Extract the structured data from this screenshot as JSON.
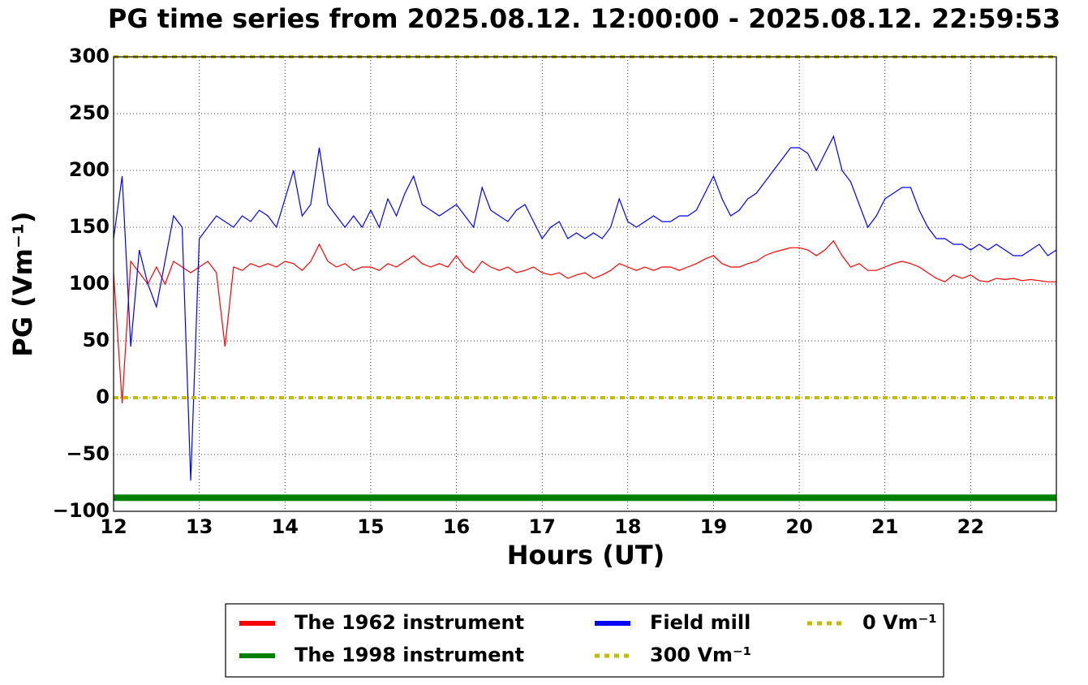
{
  "chart_data": {
    "type": "line",
    "title": "PG time series from 2025.08.12. 12:00:00 - 2025.08.12. 22:59:53",
    "xlabel": "Hours (UT)",
    "ylabel": "PG (Vm⁻¹)",
    "x": [
      12,
      12.1,
      12.2,
      12.3,
      12.4,
      12.5,
      12.6,
      12.7,
      12.8,
      12.9,
      13,
      13.1,
      13.2,
      13.3,
      13.4,
      13.5,
      13.6,
      13.7,
      13.8,
      13.9,
      14,
      14.1,
      14.2,
      14.3,
      14.4,
      14.5,
      14.6,
      14.7,
      14.8,
      14.9,
      15,
      15.1,
      15.2,
      15.3,
      15.4,
      15.5,
      15.6,
      15.7,
      15.8,
      15.9,
      16,
      16.1,
      16.2,
      16.3,
      16.4,
      16.5,
      16.6,
      16.7,
      16.8,
      16.9,
      17,
      17.1,
      17.2,
      17.3,
      17.4,
      17.5,
      17.6,
      17.7,
      17.8,
      17.9,
      18,
      18.1,
      18.2,
      18.3,
      18.4,
      18.5,
      18.6,
      18.7,
      18.8,
      18.9,
      19,
      19.1,
      19.2,
      19.3,
      19.4,
      19.5,
      19.6,
      19.7,
      19.8,
      19.9,
      20,
      20.1,
      20.2,
      20.3,
      20.4,
      20.5,
      20.6,
      20.7,
      20.8,
      20.9,
      21,
      21.1,
      21.2,
      21.3,
      21.4,
      21.5,
      21.6,
      21.7,
      21.8,
      21.9,
      22,
      22.1,
      22.2,
      22.3,
      22.4,
      22.5,
      22.6,
      22.7,
      22.8,
      22.9,
      23
    ],
    "series": [
      {
        "name": "The 1962 instrument",
        "color": "#ff0000",
        "width": 1.2,
        "values": [
          110,
          -5,
          120,
          110,
          100,
          115,
          100,
          120,
          115,
          110,
          115,
          120,
          110,
          45,
          115,
          112,
          118,
          115,
          118,
          115,
          120,
          118,
          112,
          120,
          135,
          120,
          115,
          118,
          112,
          115,
          115,
          112,
          118,
          115,
          120,
          125,
          118,
          115,
          118,
          115,
          125,
          115,
          110,
          120,
          115,
          112,
          115,
          110,
          112,
          115,
          110,
          108,
          110,
          105,
          108,
          110,
          105,
          108,
          112,
          118,
          115,
          112,
          115,
          112,
          115,
          115,
          112,
          115,
          118,
          122,
          125,
          118,
          115,
          115,
          118,
          120,
          125,
          128,
          130,
          132,
          132,
          130,
          125,
          130,
          138,
          125,
          115,
          118,
          112,
          112,
          115,
          118,
          120,
          118,
          115,
          110,
          105,
          102,
          108,
          105,
          108,
          103,
          102,
          105,
          104,
          105,
          103,
          104,
          103,
          102,
          102
        ]
      },
      {
        "name": "The 1998 instrument",
        "color": "#008000",
        "width": 8,
        "values": [
          -88,
          -88,
          -88,
          -88,
          -88,
          -88,
          -88,
          -88,
          -88,
          -88,
          -88,
          -88,
          -88,
          -88,
          -88,
          -88,
          -88,
          -88,
          -88,
          -88,
          -88,
          -88,
          -88,
          -88,
          -88,
          -88,
          -88,
          -88,
          -88,
          -88,
          -88,
          -88,
          -88,
          -88,
          -88,
          -88,
          -88,
          -88,
          -88,
          -88,
          -88,
          -88,
          -88,
          -88,
          -88,
          -88,
          -88,
          -88,
          -88,
          -88,
          -88,
          -88,
          -88,
          -88,
          -88,
          -88,
          -88,
          -88,
          -88,
          -88,
          -88,
          -88,
          -88,
          -88,
          -88,
          -88,
          -88,
          -88,
          -88,
          -88,
          -88,
          -88,
          -88,
          -88,
          -88,
          -88,
          -88,
          -88,
          -88,
          -88,
          -88,
          -88,
          -88,
          -88,
          -88,
          -88,
          -88,
          -88,
          -88,
          -88,
          -88,
          -88,
          -88,
          -88,
          -88,
          -88,
          -88,
          -88,
          -88,
          -88,
          -88,
          -88,
          -88,
          -88,
          -88,
          -88,
          -88,
          -88,
          -88,
          -88,
          -88
        ]
      },
      {
        "name": "Field mill",
        "color": "#0000ff",
        "width": 1.2,
        "values": [
          140,
          195,
          45,
          130,
          100,
          80,
          120,
          160,
          150,
          -73,
          140,
          150,
          160,
          155,
          150,
          160,
          155,
          165,
          160,
          150,
          175,
          200,
          160,
          170,
          220,
          170,
          160,
          150,
          160,
          150,
          165,
          150,
          175,
          160,
          180,
          195,
          170,
          165,
          160,
          165,
          170,
          160,
          150,
          185,
          165,
          160,
          155,
          165,
          170,
          155,
          140,
          150,
          155,
          140,
          145,
          140,
          145,
          140,
          150,
          175,
          155,
          150,
          155,
          160,
          155,
          155,
          160,
          160,
          165,
          180,
          195,
          175,
          160,
          165,
          175,
          180,
          190,
          200,
          210,
          220,
          220,
          215,
          200,
          215,
          230,
          200,
          190,
          170,
          150,
          160,
          175,
          180,
          185,
          185,
          165,
          150,
          140,
          140,
          135,
          135,
          130,
          135,
          130,
          135,
          130,
          125,
          125,
          130,
          135,
          125,
          130
        ]
      }
    ],
    "reference_lines": [
      {
        "name": "300 Vm⁻¹",
        "value": 300,
        "color": "#bfbf00"
      },
      {
        "name": "0 Vm⁻¹",
        "value": 0,
        "color": "#bfbf00"
      }
    ],
    "xlim": [
      12,
      23
    ],
    "xticks": [
      12,
      13,
      14,
      15,
      16,
      17,
      18,
      19,
      20,
      21,
      22
    ],
    "ylim": [
      -100,
      300
    ],
    "yticks": [
      {
        "value": -100,
        "label": "−100"
      },
      {
        "value": -50,
        "label": "−50"
      },
      0,
      50,
      100,
      150,
      200,
      250,
      300
    ],
    "grid": true,
    "legend": "lower center"
  }
}
